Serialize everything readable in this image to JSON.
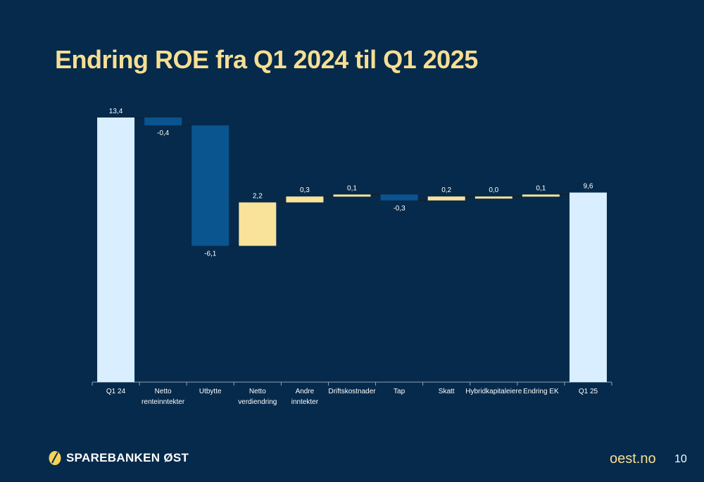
{
  "title": "Endring ROE fra Q1 2024 til Q1 2025",
  "footer": {
    "brand": "SPAREBANKEN ØST",
    "website": "oest.no",
    "page": "10"
  },
  "colors": {
    "background": "#062a4b",
    "total": "#d9eeff",
    "positive": "#f9e29a",
    "negative": "#0a548f",
    "title": "#f6df93"
  },
  "chart_data": {
    "type": "waterfall",
    "categories": [
      [
        "Q1 24"
      ],
      [
        "Netto",
        "renteinntekter"
      ],
      [
        "Utbytte"
      ],
      [
        "Netto",
        "verdiendring"
      ],
      [
        "Andre",
        "inntekter"
      ],
      [
        "Driftskostnader"
      ],
      [
        "Tap"
      ],
      [
        "Skatt"
      ],
      [
        "Hybridkapitaleiere"
      ],
      [
        "Endring EK"
      ],
      [
        "Q1 25"
      ]
    ],
    "values": [
      13.4,
      -0.4,
      -6.1,
      2.2,
      0.3,
      0.1,
      -0.3,
      0.2,
      0.0,
      0.1,
      9.6
    ],
    "labels": [
      "13,4",
      "-0,4",
      "-6,1",
      "2,2",
      "0,3",
      "0,1",
      "-0,3",
      "0,2",
      "0,0",
      "0,1",
      "9,6"
    ],
    "kinds": [
      "total",
      "delta",
      "delta",
      "delta",
      "delta",
      "delta",
      "delta",
      "delta",
      "delta",
      "delta",
      "total"
    ],
    "ylim": [
      0,
      13.4
    ]
  }
}
